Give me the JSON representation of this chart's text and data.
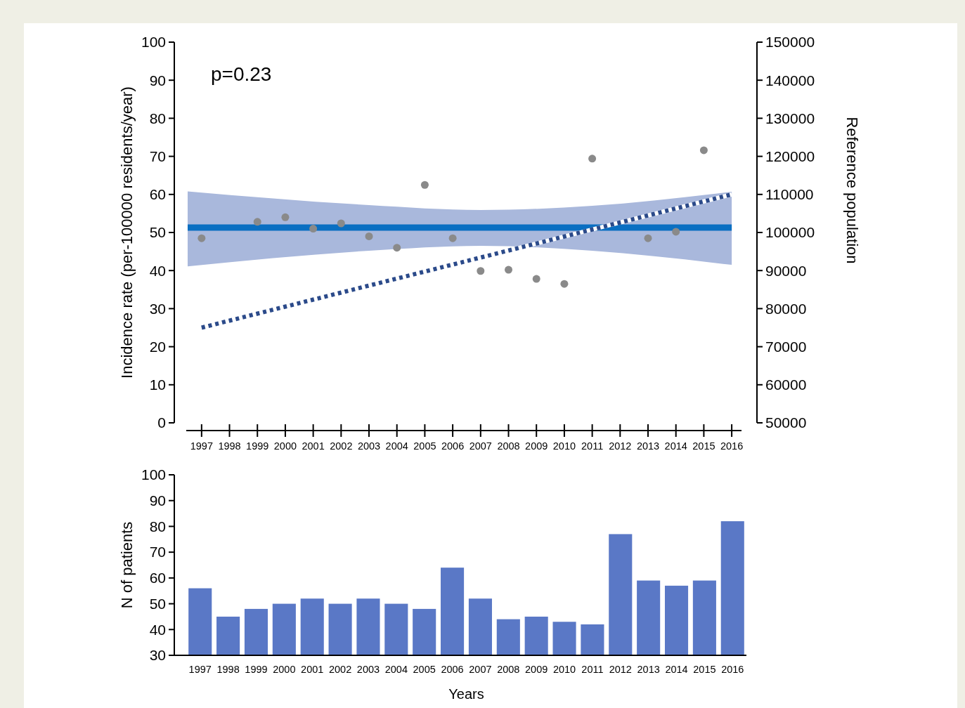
{
  "chart_data": [
    {
      "type": "scatter",
      "ylabel": "Incidence rate (per-100000 residents/year)",
      "y2label": "Reference population",
      "annotations": [
        "p=0.23"
      ],
      "xlim": [
        1996.45,
        2016.35
      ],
      "xticks": [
        1997,
        1998,
        1999,
        2000,
        2001,
        2002,
        2003,
        2004,
        2005,
        2006,
        2007,
        2008,
        2009,
        2010,
        2011,
        2012,
        2013,
        2014,
        2015,
        2016
      ],
      "ylim": [
        0,
        100
      ],
      "yticks": [
        0,
        10,
        20,
        30,
        40,
        50,
        60,
        70,
        80,
        90,
        100
      ],
      "y2lim": [
        50000,
        150000
      ],
      "y2ticks": [
        50000,
        60000,
        70000,
        80000,
        90000,
        100000,
        110000,
        120000,
        130000,
        140000,
        150000
      ],
      "series": [
        {
          "type": "line",
          "color": "#0a6fc2",
          "x": [
            1996.5,
            2003,
            2007,
            2011,
            2016
          ],
          "values": [
            51.3,
            51.3,
            51.3,
            51.3,
            51.3
          ],
          "lower": [
            41.1,
            45.2,
            46.5,
            45.2,
            41.5
          ],
          "upper": [
            60.8,
            57.2,
            55.9,
            57,
            60.7
          ],
          "marker": "none",
          "line_style": "solid"
        },
        {
          "type": "scatter",
          "color": "#8a8a8a",
          "x": [
            1997,
            1999,
            2000,
            2001,
            2002,
            2003,
            2004,
            2005,
            2006,
            2007,
            2008,
            2009,
            2010,
            2011,
            2013,
            2014,
            2015
          ],
          "values": [
            48.5,
            52.8,
            54,
            51,
            52.4,
            49,
            46,
            62.5,
            48.5,
            39.9,
            40.2,
            37.8,
            36.5,
            69.4,
            48.5,
            50.2,
            71.6
          ],
          "marker": "circle"
        },
        {
          "type": "line",
          "axis": "y2",
          "color": "#2b4a8a",
          "x": [
            1997,
            2016
          ],
          "values": [
            75000,
            110000
          ],
          "marker": "none",
          "line_style": "dotted"
        }
      ]
    },
    {
      "type": "bar",
      "ylabel": "N of patients",
      "xlabel": "Years",
      "categories": [
        "1997",
        "1998",
        "1999",
        "2000",
        "2001",
        "2002",
        "2003",
        "2004",
        "2005",
        "2006",
        "2007",
        "2008",
        "2009",
        "2010",
        "2011",
        "2012",
        "2013",
        "2014",
        "2015",
        "2016"
      ],
      "values": [
        56,
        45,
        48,
        50,
        52,
        50,
        52,
        50,
        48,
        64,
        52,
        44,
        45,
        43,
        42,
        77,
        59,
        57,
        59,
        82
      ],
      "color": "#5a78c6",
      "ylim": [
        30,
        100
      ],
      "yticks": [
        30,
        40,
        50,
        60,
        70,
        80,
        90,
        100
      ]
    }
  ]
}
